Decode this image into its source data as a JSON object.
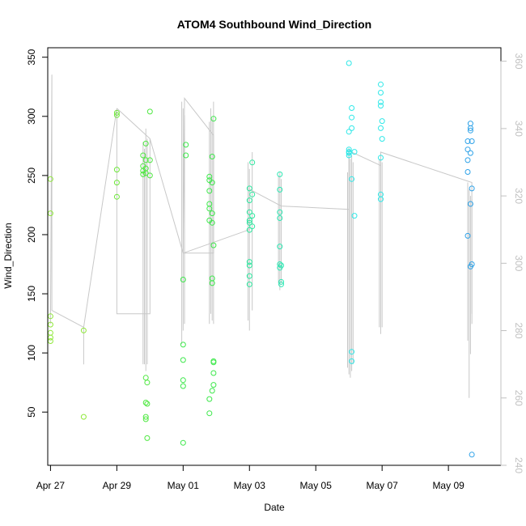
{
  "chart_data": {
    "type": "scatter",
    "title": "ATOM4 Southbound Wind_Direction",
    "xlabel": "Date",
    "ylabel": "Wind_Direction",
    "x_domain": [
      "2023-04-26T22:00",
      "2023-05-10T14:00"
    ],
    "y_domain": [
      5,
      358
    ],
    "y_ticks": [
      50,
      100,
      150,
      200,
      250,
      300,
      350
    ],
    "x_ticks": [
      {
        "date": "2023-04-27",
        "label": "Apr 27"
      },
      {
        "date": "2023-04-29",
        "label": "Apr 29"
      },
      {
        "date": "2023-05-01",
        "label": "May 01"
      },
      {
        "date": "2023-05-03",
        "label": "May 03"
      },
      {
        "date": "2023-05-05",
        "label": "May 05"
      },
      {
        "date": "2023-05-07",
        "label": "May 07"
      },
      {
        "date": "2023-05-09",
        "label": "May 09"
      }
    ],
    "y2_domain": [
      240,
      364
    ],
    "y2_ticks": [
      240,
      260,
      280,
      300,
      320,
      340,
      360
    ],
    "grid": false,
    "legend": "none",
    "colors": {
      "secondary_line": "#c8c8c8",
      "secondary_axis": "#c0c0c0",
      "frame": "#000000"
    },
    "points": [
      {
        "x": "2023-04-27T00:00",
        "y": 247,
        "c": "#8fe83a"
      },
      {
        "x": "2023-04-27T00:00",
        "y": 218,
        "c": "#8fe83a"
      },
      {
        "x": "2023-04-27T00:00",
        "y": 131,
        "c": "#8fe83a"
      },
      {
        "x": "2023-04-27T00:00",
        "y": 124,
        "c": "#8fe83a"
      },
      {
        "x": "2023-04-27T00:00",
        "y": 117,
        "c": "#8fe83a"
      },
      {
        "x": "2023-04-27T00:00",
        "y": 113,
        "c": "#8fe83a"
      },
      {
        "x": "2023-04-27T00:00",
        "y": 110,
        "c": "#8fe83a"
      },
      {
        "x": "2023-04-28T00:00",
        "y": 119,
        "c": "#8fe83a"
      },
      {
        "x": "2023-04-28T00:00",
        "y": 46,
        "c": "#8fe83a"
      },
      {
        "x": "2023-04-29T00:00",
        "y": 303,
        "c": "#6ee83a"
      },
      {
        "x": "2023-04-29T00:00",
        "y": 301,
        "c": "#6ee83a"
      },
      {
        "x": "2023-04-29T00:00",
        "y": 255,
        "c": "#6ee83a"
      },
      {
        "x": "2023-04-29T00:00",
        "y": 244,
        "c": "#6ee83a"
      },
      {
        "x": "2023-04-29T00:00",
        "y": 232,
        "c": "#6ee83a"
      },
      {
        "x": "2023-04-29T19:00",
        "y": 267,
        "c": "#4ee840"
      },
      {
        "x": "2023-04-29T19:00",
        "y": 258,
        "c": "#4ee840"
      },
      {
        "x": "2023-04-29T19:00",
        "y": 254,
        "c": "#4ee840"
      },
      {
        "x": "2023-04-29T19:00",
        "y": 251,
        "c": "#4ee840"
      },
      {
        "x": "2023-04-29T21:00",
        "y": 277,
        "c": "#4ee840"
      },
      {
        "x": "2023-04-29T21:00",
        "y": 263,
        "c": "#4ee840"
      },
      {
        "x": "2023-04-29T21:00",
        "y": 256,
        "c": "#4ee840"
      },
      {
        "x": "2023-04-29T21:00",
        "y": 252,
        "c": "#4ee840"
      },
      {
        "x": "2023-04-29T21:00",
        "y": 79,
        "c": "#4ee840"
      },
      {
        "x": "2023-04-29T21:00",
        "y": 58,
        "c": "#4ee840"
      },
      {
        "x": "2023-04-29T21:00",
        "y": 46,
        "c": "#4ee840"
      },
      {
        "x": "2023-04-29T21:00",
        "y": 44,
        "c": "#4ee840"
      },
      {
        "x": "2023-04-29T22:00",
        "y": 75,
        "c": "#4ee840"
      },
      {
        "x": "2023-04-29T22:00",
        "y": 57,
        "c": "#4ee840"
      },
      {
        "x": "2023-04-29T22:00",
        "y": 28,
        "c": "#4ee840"
      },
      {
        "x": "2023-04-30T00:00",
        "y": 304,
        "c": "#4ee840"
      },
      {
        "x": "2023-04-30T00:00",
        "y": 263,
        "c": "#4ee840"
      },
      {
        "x": "2023-04-30T00:00",
        "y": 250,
        "c": "#4ee840"
      },
      {
        "x": "2023-05-01T00:00",
        "y": 162,
        "c": "#3ce84a"
      },
      {
        "x": "2023-05-01T00:00",
        "y": 107,
        "c": "#3ce84a"
      },
      {
        "x": "2023-05-01T00:00",
        "y": 94,
        "c": "#3ce84a"
      },
      {
        "x": "2023-05-01T00:00",
        "y": 77,
        "c": "#3ce84a"
      },
      {
        "x": "2023-05-01T00:00",
        "y": 72,
        "c": "#3ce84a"
      },
      {
        "x": "2023-05-01T00:00",
        "y": 24,
        "c": "#3ce84a"
      },
      {
        "x": "2023-05-01T02:00",
        "y": 276,
        "c": "#3ce84a"
      },
      {
        "x": "2023-05-01T02:00",
        "y": 267,
        "c": "#3ce84a"
      },
      {
        "x": "2023-05-01T19:00",
        "y": 249,
        "c": "#3ce84a"
      },
      {
        "x": "2023-05-01T19:00",
        "y": 246,
        "c": "#3ce84a"
      },
      {
        "x": "2023-05-01T19:00",
        "y": 237,
        "c": "#3ce84a"
      },
      {
        "x": "2023-05-01T19:00",
        "y": 226,
        "c": "#3ce84a"
      },
      {
        "x": "2023-05-01T19:00",
        "y": 222,
        "c": "#3ce84a"
      },
      {
        "x": "2023-05-01T19:00",
        "y": 212,
        "c": "#3ce84a"
      },
      {
        "x": "2023-05-01T19:00",
        "y": 61,
        "c": "#3ce84a"
      },
      {
        "x": "2023-05-01T19:00",
        "y": 49,
        "c": "#3ce84a"
      },
      {
        "x": "2023-05-01T21:00",
        "y": 266,
        "c": "#3ce84a"
      },
      {
        "x": "2023-05-01T21:00",
        "y": 244,
        "c": "#3ce84a"
      },
      {
        "x": "2023-05-01T21:00",
        "y": 218,
        "c": "#3ce84a"
      },
      {
        "x": "2023-05-01T21:00",
        "y": 210,
        "c": "#3ce84a"
      },
      {
        "x": "2023-05-01T21:00",
        "y": 163,
        "c": "#3ce84a"
      },
      {
        "x": "2023-05-01T21:00",
        "y": 159,
        "c": "#3ce84a"
      },
      {
        "x": "2023-05-01T21:00",
        "y": 68,
        "c": "#3ce84a"
      },
      {
        "x": "2023-05-01T22:00",
        "y": 298,
        "c": "#3ce84a"
      },
      {
        "x": "2023-05-01T22:00",
        "y": 191,
        "c": "#3ce84a"
      },
      {
        "x": "2023-05-01T22:00",
        "y": 93,
        "c": "#3ce84a"
      },
      {
        "x": "2023-05-01T22:00",
        "y": 92,
        "c": "#3ce84a"
      },
      {
        "x": "2023-05-01T22:00",
        "y": 83,
        "c": "#3ce84a"
      },
      {
        "x": "2023-05-01T22:00",
        "y": 73,
        "c": "#3ce84a"
      },
      {
        "x": "2023-05-03T00:00",
        "y": 239,
        "c": "#2ee8a0"
      },
      {
        "x": "2023-05-03T00:00",
        "y": 229,
        "c": "#2ee8a0"
      },
      {
        "x": "2023-05-03T00:00",
        "y": 219,
        "c": "#2ee8a0"
      },
      {
        "x": "2023-05-03T00:00",
        "y": 212,
        "c": "#2ee8a0"
      },
      {
        "x": "2023-05-03T00:00",
        "y": 210,
        "c": "#2ee8a0"
      },
      {
        "x": "2023-05-03T00:00",
        "y": 204,
        "c": "#2ee8a0"
      },
      {
        "x": "2023-05-03T00:00",
        "y": 177,
        "c": "#2ee8a0"
      },
      {
        "x": "2023-05-03T00:00",
        "y": 174,
        "c": "#2ee8a0"
      },
      {
        "x": "2023-05-03T00:00",
        "y": 165,
        "c": "#2ee8a0"
      },
      {
        "x": "2023-05-03T00:00",
        "y": 158,
        "c": "#2ee8a0"
      },
      {
        "x": "2023-05-03T02:00",
        "y": 261,
        "c": "#2ee8a0"
      },
      {
        "x": "2023-05-03T02:00",
        "y": 234,
        "c": "#2ee8a0"
      },
      {
        "x": "2023-05-03T02:00",
        "y": 216,
        "c": "#2ee8a0"
      },
      {
        "x": "2023-05-03T02:00",
        "y": 207,
        "c": "#2ee8a0"
      },
      {
        "x": "2023-05-03T22:00",
        "y": 251,
        "c": "#2ee8b4"
      },
      {
        "x": "2023-05-03T22:00",
        "y": 238,
        "c": "#2ee8b4"
      },
      {
        "x": "2023-05-03T22:00",
        "y": 219,
        "c": "#2ee8b4"
      },
      {
        "x": "2023-05-03T22:00",
        "y": 214,
        "c": "#2ee8b4"
      },
      {
        "x": "2023-05-03T22:00",
        "y": 190,
        "c": "#2ee8b4"
      },
      {
        "x": "2023-05-03T22:00",
        "y": 175,
        "c": "#2ee8b4"
      },
      {
        "x": "2023-05-03T22:00",
        "y": 172,
        "c": "#2ee8b4"
      },
      {
        "x": "2023-05-03T23:00",
        "y": 174,
        "c": "#2ee8b4"
      },
      {
        "x": "2023-05-03T23:00",
        "y": 160,
        "c": "#2ee8b4"
      },
      {
        "x": "2023-05-03T23:00",
        "y": 158,
        "c": "#2ee8b4"
      },
      {
        "x": "2023-05-06T00:00",
        "y": 345,
        "c": "#2ee8e8"
      },
      {
        "x": "2023-05-06T00:00",
        "y": 287,
        "c": "#2ee8e8"
      },
      {
        "x": "2023-05-06T00:00",
        "y": 272,
        "c": "#2ee8e8"
      },
      {
        "x": "2023-05-06T00:00",
        "y": 270,
        "c": "#2ee8e8"
      },
      {
        "x": "2023-05-06T00:00",
        "y": 269,
        "c": "#2ee8e8"
      },
      {
        "x": "2023-05-06T00:00",
        "y": 267,
        "c": "#2ee8e8"
      },
      {
        "x": "2023-05-06T02:00",
        "y": 307,
        "c": "#2ee8e8"
      },
      {
        "x": "2023-05-06T02:00",
        "y": 299,
        "c": "#2ee8e8"
      },
      {
        "x": "2023-05-06T02:00",
        "y": 290,
        "c": "#2ee8e8"
      },
      {
        "x": "2023-05-06T02:00",
        "y": 247,
        "c": "#2ee8e8"
      },
      {
        "x": "2023-05-06T02:00",
        "y": 101,
        "c": "#2ee8e8"
      },
      {
        "x": "2023-05-06T02:00",
        "y": 93,
        "c": "#2ee8e8"
      },
      {
        "x": "2023-05-06T04:00",
        "y": 270,
        "c": "#2ee8e8"
      },
      {
        "x": "2023-05-06T04:00",
        "y": 216,
        "c": "#2ee8e8"
      },
      {
        "x": "2023-05-06T23:00",
        "y": 327,
        "c": "#2ee8e8"
      },
      {
        "x": "2023-05-06T23:00",
        "y": 320,
        "c": "#2ee8e8"
      },
      {
        "x": "2023-05-06T23:00",
        "y": 312,
        "c": "#2ee8e8"
      },
      {
        "x": "2023-05-06T23:00",
        "y": 309,
        "c": "#2ee8e8"
      },
      {
        "x": "2023-05-06T23:00",
        "y": 290,
        "c": "#2ee8e8"
      },
      {
        "x": "2023-05-06T23:00",
        "y": 265,
        "c": "#2ee8e8"
      },
      {
        "x": "2023-05-06T23:00",
        "y": 234,
        "c": "#2ee8e8"
      },
      {
        "x": "2023-05-06T23:00",
        "y": 230,
        "c": "#2ee8e8"
      },
      {
        "x": "2023-05-07T00:00",
        "y": 296,
        "c": "#2ee8e8"
      },
      {
        "x": "2023-05-07T00:00",
        "y": 281,
        "c": "#2ee8e8"
      },
      {
        "x": "2023-05-09T14:00",
        "y": 279,
        "c": "#2ea2e8"
      },
      {
        "x": "2023-05-09T14:00",
        "y": 272,
        "c": "#2ea2e8"
      },
      {
        "x": "2023-05-09T14:00",
        "y": 263,
        "c": "#2ea2e8"
      },
      {
        "x": "2023-05-09T14:00",
        "y": 253,
        "c": "#2ea2e8"
      },
      {
        "x": "2023-05-09T14:00",
        "y": 199,
        "c": "#2ea2e8"
      },
      {
        "x": "2023-05-09T16:00",
        "y": 294,
        "c": "#2ea2e8"
      },
      {
        "x": "2023-05-09T16:00",
        "y": 290,
        "c": "#2ea2e8"
      },
      {
        "x": "2023-05-09T16:00",
        "y": 288,
        "c": "#2ea2e8"
      },
      {
        "x": "2023-05-09T16:00",
        "y": 269,
        "c": "#2ea2e8"
      },
      {
        "x": "2023-05-09T16:00",
        "y": 226,
        "c": "#2ea2e8"
      },
      {
        "x": "2023-05-09T16:00",
        "y": 173,
        "c": "#2ea2e8"
      },
      {
        "x": "2023-05-09T17:00",
        "y": 279,
        "c": "#2ea2e8"
      },
      {
        "x": "2023-05-09T17:00",
        "y": 239,
        "c": "#2ea2e8"
      },
      {
        "x": "2023-05-09T17:00",
        "y": 175,
        "c": "#2ea2e8"
      },
      {
        "x": "2023-05-09T17:00",
        "y": 14,
        "c": "#2ea2e8"
      }
    ],
    "secondary_line": [
      {
        "x": "2023-04-27T00:00",
        "y": 282
      },
      {
        "x": "2023-04-27T01:00",
        "y": 356
      },
      {
        "x": "2023-04-27T01:00",
        "y": 286
      },
      {
        "x": "2023-04-28T00:00",
        "y": 281
      },
      {
        "x": "2023-04-28T00:00",
        "y": 270
      },
      {
        "x": "2023-04-28T00:00",
        "y": 281
      },
      {
        "x": "2023-04-29T00:00",
        "y": 346
      },
      {
        "x": "2023-04-29T00:00",
        "y": 285
      },
      {
        "x": "2023-04-30T00:00",
        "y": 285
      },
      {
        "x": "2023-04-30T00:00",
        "y": 337
      },
      {
        "x": "2023-04-29T00:00",
        "y": 346
      },
      {
        "x": "2023-04-30T00:00",
        "y": 337
      },
      {
        "x": "2023-05-01T00:00",
        "y": 303
      },
      {
        "x": "2023-05-01T01:00",
        "y": 349
      },
      {
        "x": "2023-05-01T22:00",
        "y": 338
      },
      {
        "x": "2023-05-01T22:00",
        "y": 303
      },
      {
        "x": "2023-05-01T00:00",
        "y": 303
      },
      {
        "x": "2023-05-03T00:00",
        "y": 310
      },
      {
        "x": "2023-05-03T00:00",
        "y": 322
      },
      {
        "x": "2023-05-03T23:00",
        "y": 317
      },
      {
        "x": "2023-05-06T00:00",
        "y": 316
      },
      {
        "x": "2023-05-06T00:00",
        "y": 295
      },
      {
        "x": "2023-05-06T00:00",
        "y": 334
      },
      {
        "x": "2023-05-06T02:00",
        "y": 333
      },
      {
        "x": "2023-05-06T23:00",
        "y": 329
      },
      {
        "x": "2023-05-06T23:00",
        "y": 316
      },
      {
        "x": "2023-05-06T23:00",
        "y": 333
      },
      {
        "x": "2023-05-09T17:00",
        "y": 324
      },
      {
        "x": "2023-05-09T17:00",
        "y": 285
      }
    ],
    "secondary_spikes": [
      {
        "x": "2023-04-29T19:00",
        "lo": 270,
        "hi": 336
      },
      {
        "x": "2023-04-29T20:00",
        "lo": 270,
        "hi": 334
      },
      {
        "x": "2023-04-29T21:00",
        "lo": 268,
        "hi": 340
      },
      {
        "x": "2023-04-29T22:00",
        "lo": 270,
        "hi": 337
      },
      {
        "x": "2023-04-30T23:00",
        "lo": 276,
        "hi": 348
      },
      {
        "x": "2023-05-01T00:00",
        "lo": 280,
        "hi": 346
      },
      {
        "x": "2023-05-01T01:00",
        "lo": 282,
        "hi": 344
      },
      {
        "x": "2023-05-01T19:00",
        "lo": 282,
        "hi": 342
      },
      {
        "x": "2023-05-01T20:00",
        "lo": 285,
        "hi": 346
      },
      {
        "x": "2023-05-01T21:00",
        "lo": 283,
        "hi": 343
      },
      {
        "x": "2023-05-01T22:00",
        "lo": 282,
        "hi": 348
      },
      {
        "x": "2023-05-02T23:00",
        "lo": 283,
        "hi": 330
      },
      {
        "x": "2023-05-03T00:00",
        "lo": 280,
        "hi": 328
      },
      {
        "x": "2023-05-03T02:00",
        "lo": 286,
        "hi": 333
      },
      {
        "x": "2023-05-03T21:00",
        "lo": 294,
        "hi": 326
      },
      {
        "x": "2023-05-03T22:00",
        "lo": 292,
        "hi": 327
      },
      {
        "x": "2023-05-03T23:00",
        "lo": 294,
        "hi": 325
      },
      {
        "x": "2023-05-05T23:00",
        "lo": 269,
        "hi": 327
      },
      {
        "x": "2023-05-06T00:00",
        "lo": 267,
        "hi": 333
      },
      {
        "x": "2023-05-06T01:00",
        "lo": 266,
        "hi": 331
      },
      {
        "x": "2023-05-06T02:00",
        "lo": 268,
        "hi": 332
      },
      {
        "x": "2023-05-06T03:00",
        "lo": 270,
        "hi": 330
      },
      {
        "x": "2023-05-06T22:00",
        "lo": 281,
        "hi": 331
      },
      {
        "x": "2023-05-06T23:00",
        "lo": 279,
        "hi": 332
      },
      {
        "x": "2023-05-07T00:00",
        "lo": 281,
        "hi": 330
      },
      {
        "x": "2023-05-09T14:00",
        "lo": 277,
        "hi": 324
      },
      {
        "x": "2023-05-09T15:00",
        "lo": 260,
        "hi": 322
      },
      {
        "x": "2023-05-09T16:00",
        "lo": 273,
        "hi": 320
      },
      {
        "x": "2023-05-09T17:00",
        "lo": 282,
        "hi": 319
      }
    ]
  }
}
